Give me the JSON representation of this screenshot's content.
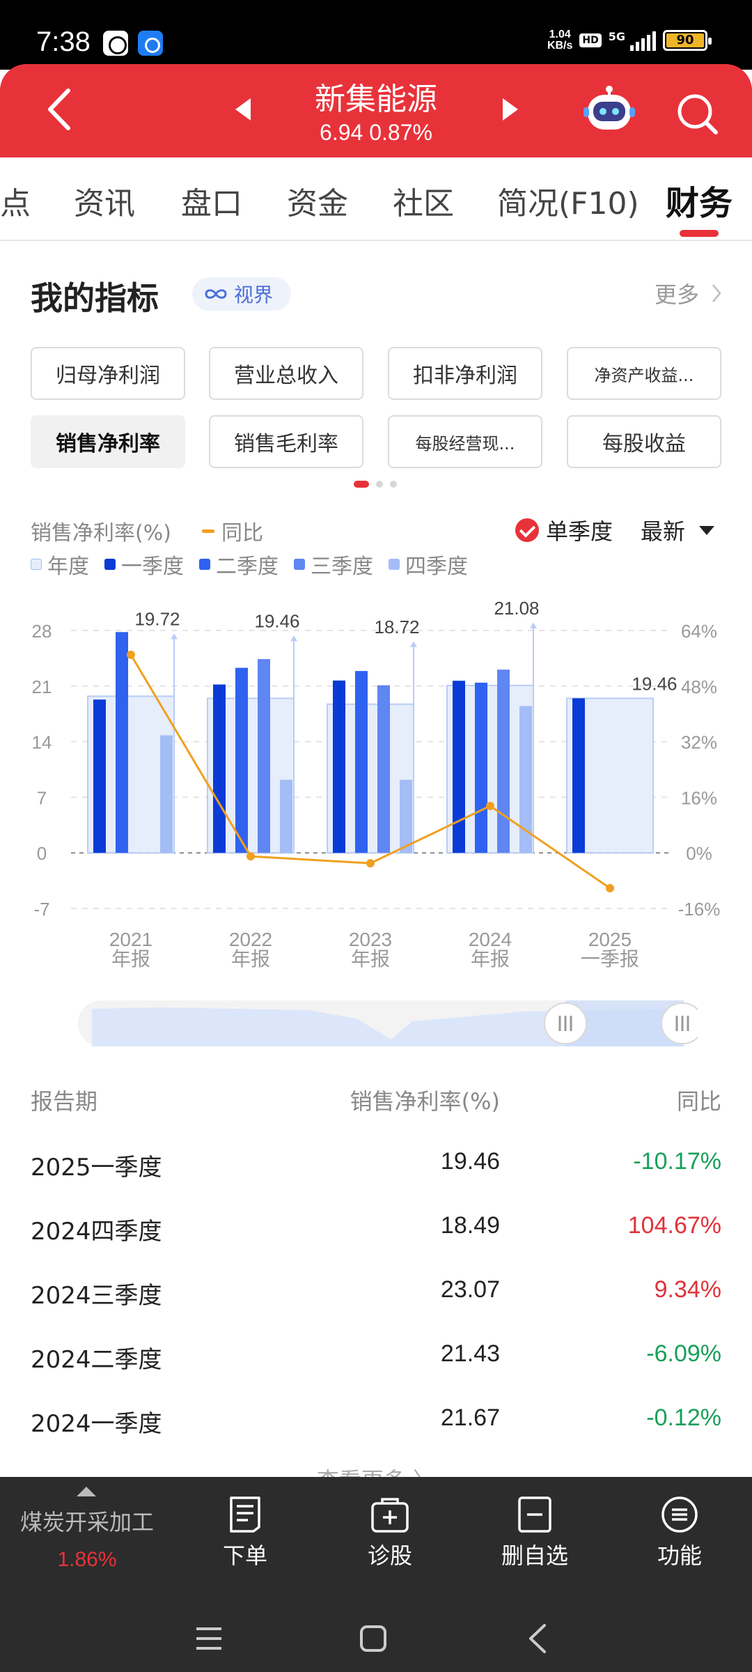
{
  "status_bar": {
    "time": "7:38",
    "net_speed_top": "1.04",
    "net_speed_bottom": "KB/s",
    "hd": "HD",
    "network": "5G",
    "battery": "90"
  },
  "header": {
    "stock_name": "新集能源",
    "quote": "6.94  0.87%"
  },
  "tabs": [
    {
      "label": "点"
    },
    {
      "label": "资讯"
    },
    {
      "label": "盘口"
    },
    {
      "label": "资金"
    },
    {
      "label": "社区"
    },
    {
      "label": "简况(F10)"
    },
    {
      "label": "财务",
      "active": true
    }
  ],
  "section": {
    "title": "我的指标",
    "vision_label": "视界",
    "more_label": "更多"
  },
  "indicators": [
    {
      "label": "归母净利润"
    },
    {
      "label": "营业总收入"
    },
    {
      "label": "扣非净利润"
    },
    {
      "label": "净资产收益..."
    },
    {
      "label": "销售净利率",
      "selected": true
    },
    {
      "label": "销售毛利率"
    },
    {
      "label": "每股经营现..."
    },
    {
      "label": "每股收益"
    }
  ],
  "chart_controls": {
    "metric_label": "销售净利率(%)",
    "yoy_label": "同比",
    "single_quarter_label": "单季度",
    "latest_label": "最新"
  },
  "legend": [
    {
      "label": "年度",
      "color": "#e6eefc"
    },
    {
      "label": "一季度",
      "color": "#0a3bd6"
    },
    {
      "label": "二季度",
      "color": "#2f62ef"
    },
    {
      "label": "三季度",
      "color": "#5f86f1"
    },
    {
      "label": "四季度",
      "color": "#a4bdf6"
    }
  ],
  "chart_data": {
    "type": "bar",
    "categories": [
      {
        "year": "2021",
        "sub": "年报"
      },
      {
        "year": "2022",
        "sub": "年报"
      },
      {
        "year": "2023",
        "sub": "年报"
      },
      {
        "year": "2024",
        "sub": "年报"
      },
      {
        "year": "2025",
        "sub": "一季报"
      }
    ],
    "annual": [
      19.72,
      19.46,
      18.72,
      21.08,
      19.46
    ],
    "annual_labels": [
      "19.72",
      "19.46",
      "18.72",
      "21.08",
      "19.46"
    ],
    "series": [
      {
        "name": "一季度",
        "values": [
          19.3,
          21.2,
          21.7,
          21.67,
          19.46
        ]
      },
      {
        "name": "二季度",
        "values": [
          27.8,
          23.3,
          22.9,
          21.43,
          null
        ]
      },
      {
        "name": "三季度",
        "values": [
          null,
          24.4,
          21.1,
          23.07,
          null
        ]
      },
      {
        "name": "四季度",
        "values": [
          14.8,
          9.2,
          9.2,
          18.49,
          null
        ]
      }
    ],
    "yoy": [
      57,
      -1,
      -3,
      13.5,
      -10.17
    ],
    "y_left_ticks": [
      "28",
      "21",
      "14",
      "7",
      "0",
      "-7"
    ],
    "y_left_range": [
      -7,
      28
    ],
    "y_right_ticks": [
      "64%",
      "48%",
      "32%",
      "16%",
      "0%",
      "-16%"
    ],
    "y_right_range": [
      -16,
      64
    ]
  },
  "range_slider": {
    "window_start": 0.8,
    "window_end": 1.0
  },
  "table": {
    "headers": [
      "报告期",
      "销售净利率(%)",
      "同比"
    ],
    "rows": [
      {
        "period": "2025一季度",
        "value": "19.46",
        "yoy": "-10.17%",
        "dir": "down"
      },
      {
        "period": "2024四季度",
        "value": "18.49",
        "yoy": "104.67%",
        "dir": "up"
      },
      {
        "period": "2024三季度",
        "value": "23.07",
        "yoy": "9.34%",
        "dir": "up"
      },
      {
        "period": "2024二季度",
        "value": "21.43",
        "yoy": "-6.09%",
        "dir": "down"
      },
      {
        "period": "2024一季度",
        "value": "21.67",
        "yoy": "-0.12%",
        "dir": "down"
      }
    ],
    "see_more": "查看更多 〉"
  },
  "bottom_bar": {
    "sector_name": "煤炭开采加工",
    "sector_change": "1.86%",
    "buttons": [
      {
        "label": "下单",
        "icon": "order-icon"
      },
      {
        "label": "诊股",
        "icon": "diagnose-icon"
      },
      {
        "label": "删自选",
        "icon": "remove-watchlist-icon"
      },
      {
        "label": "功能",
        "icon": "menu-icon"
      }
    ]
  }
}
